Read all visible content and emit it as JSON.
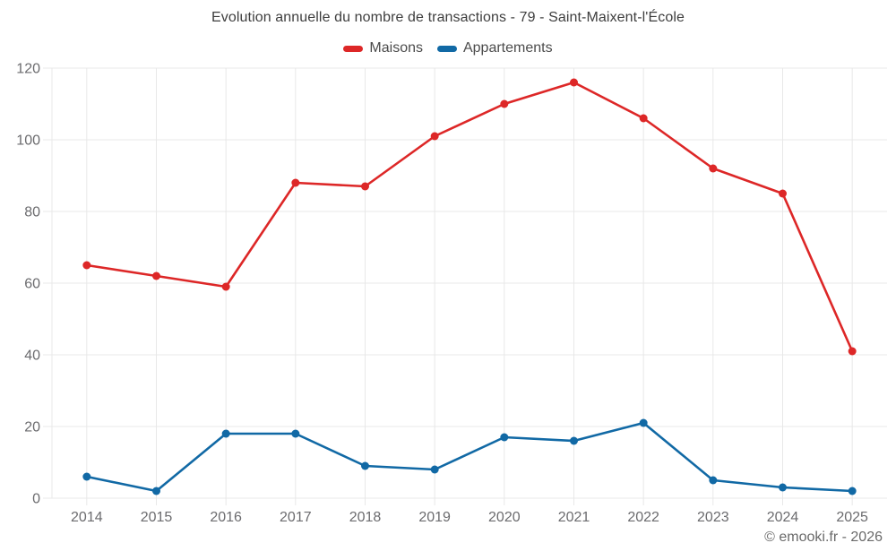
{
  "chart": {
    "title": "Evolution annuelle du nombre de transactions - 79 - Saint-Maixent-l'École",
    "footer": "© emooki.fr - 2026"
  },
  "chart_data": {
    "type": "line",
    "title": "Evolution annuelle du nombre de transactions - 79 - Saint-Maixent-l'École",
    "categories": [
      "2014",
      "2015",
      "2016",
      "2017",
      "2018",
      "2019",
      "2020",
      "2021",
      "2022",
      "2023",
      "2024",
      "2025"
    ],
    "series": [
      {
        "name": "Maisons",
        "color": "#dd2727",
        "values": [
          65,
          62,
          59,
          88,
          87,
          101,
          110,
          116,
          106,
          92,
          85,
          41
        ]
      },
      {
        "name": "Appartements",
        "color": "#1169a5",
        "values": [
          6,
          2,
          18,
          18,
          9,
          8,
          17,
          16,
          21,
          5,
          3,
          2
        ]
      }
    ],
    "xlabel": "",
    "ylabel": "",
    "ylim": [
      0,
      120
    ],
    "ytick_step": 20,
    "yticks": [
      0,
      20,
      40,
      60,
      80,
      100,
      120
    ],
    "grid": "on",
    "legend_position": "top",
    "theme": {
      "grid_color": "#e8e8e8",
      "axis_text_color": "#6b6b6e",
      "title_color": "#3e3e3e",
      "background": "#ffffff"
    }
  }
}
